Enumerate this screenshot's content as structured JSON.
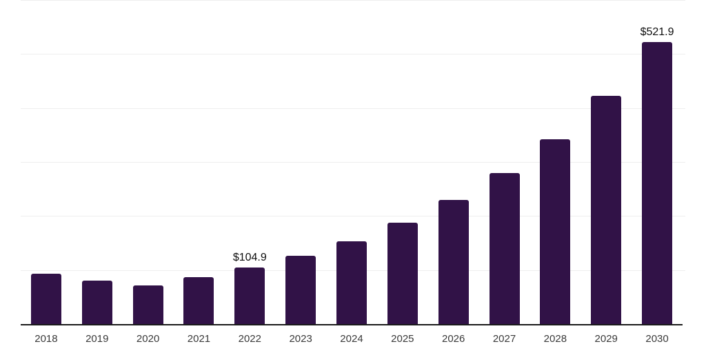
{
  "chart_data": {
    "type": "bar",
    "title": "",
    "categories": [
      "2018",
      "2019",
      "2020",
      "2021",
      "2022",
      "2023",
      "2024",
      "2025",
      "2026",
      "2027",
      "2028",
      "2029",
      "2030"
    ],
    "values": [
      92.9,
      79.9,
      72.1,
      86.5,
      104.9,
      126.6,
      153.5,
      187.5,
      229.3,
      279.3,
      342.4,
      422.5,
      521.9
    ],
    "data_labels": {
      "2022": "$104.9",
      "2030": "$521.9"
    },
    "xlabel": "",
    "ylabel": "",
    "ylim": [
      0,
      600
    ],
    "gridline_values": [
      100,
      200,
      300,
      400,
      500,
      600
    ],
    "grid": true,
    "legend": false,
    "colors": {
      "bar": "#311247",
      "gridline": "#eeeeee",
      "axis_line": "#1a1a1a",
      "tick_label": "#3a3a3a",
      "data_label": "#0d0d0d",
      "background": "#ffffff"
    }
  }
}
